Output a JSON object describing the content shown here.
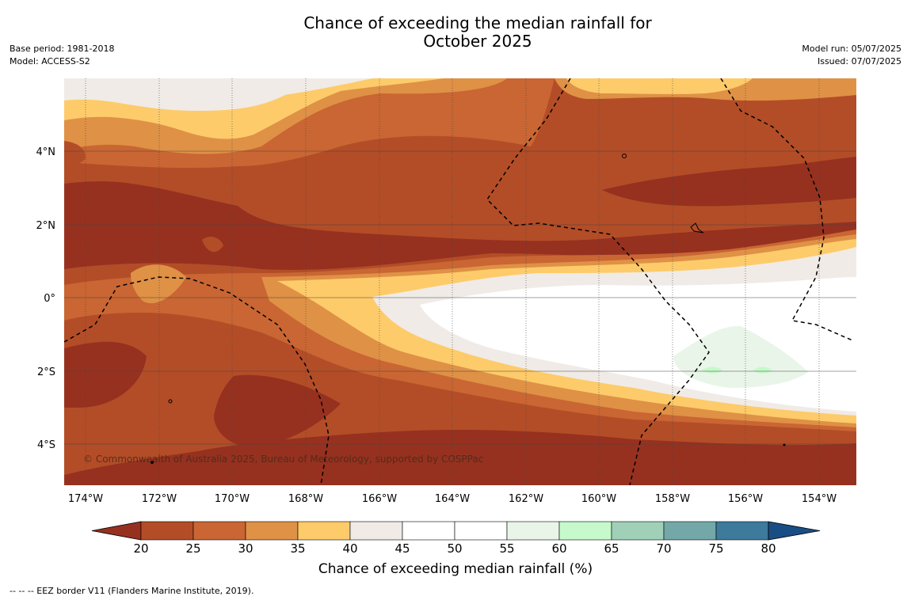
{
  "title_line1": "Chance of exceeding the median rainfall for",
  "title_line2": "October 2025",
  "base_period": "Base period: 1981-2018",
  "model": "Model: ACCESS-S2",
  "model_run": "Model run: 05/07/2025",
  "issued": "Issued: 07/07/2025",
  "copyright": "© Commonwealth of Australia 2025, Bureau of Meteorology, supported by COSPPac",
  "colorbar_title": "Chance of exceeding median rainfall (%)",
  "footnote": "--  --  -- EEZ border V11 (Flanders Marine Institute, 2019).",
  "lat_labels": [
    "4°N",
    "2°N",
    "0°",
    "2°S",
    "4°S"
  ],
  "lon_labels": [
    "174°W",
    "172°W",
    "170°W",
    "168°W",
    "166°W",
    "164°W",
    "162°W",
    "160°W",
    "158°W",
    "156°W",
    "154°W"
  ],
  "colorbar": {
    "ticks": [
      "20",
      "25",
      "30",
      "35",
      "40",
      "45",
      "50",
      "55",
      "60",
      "65",
      "70",
      "75",
      "80"
    ],
    "colors": [
      "#963120",
      "#b34d27",
      "#c96633",
      "#df9146",
      "#fdcb6a",
      "#f0ebe6",
      "#ffffff",
      "#ffffff",
      "#e9f5e8",
      "#c6f9cb",
      "#a0d0b8",
      "#74a8a8",
      "#3d7a9c",
      "#194e84"
    ]
  }
}
